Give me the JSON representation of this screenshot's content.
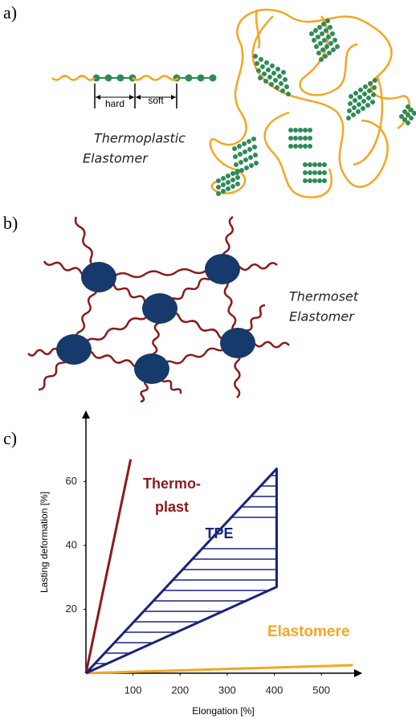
{
  "panel_a": {
    "label": "a)",
    "hard": "hard",
    "soft": "soft",
    "caption": [
      "Thermoplastic",
      "Elastomer"
    ]
  },
  "panel_b": {
    "label": "b)",
    "caption": [
      "Thermoset",
      "Elastomer"
    ]
  },
  "panel_c": {
    "label": "c)"
  },
  "chart_data": {
    "type": "line",
    "x_label": "Elongation [%]",
    "y_label": "Lasting deformation [%]",
    "xlim": [
      0,
      585
    ],
    "ylim": [
      0,
      82
    ],
    "xticks": [
      100,
      200,
      300,
      400,
      500
    ],
    "yticks": [
      20,
      40,
      60
    ],
    "series": [
      {
        "color": "#8b1a1a",
        "x": [
          0,
          95
        ],
        "values": [
          0,
          67
        ]
      },
      {
        "color": "#f5a623",
        "x": [
          0,
          567
        ],
        "values": [
          0,
          2.5
        ]
      },
      {
        "color": "#1a237e",
        "x": [
          0,
          405,
          405,
          0
        ],
        "values": [
          0,
          64,
          27,
          0
        ]
      }
    ],
    "annotations": [
      {
        "text": "Thermo-",
        "color": "#8b1a1a"
      },
      {
        "text": "plast",
        "color": "#8b1a1a"
      },
      {
        "text": "TPE",
        "color": "#1a237e"
      },
      {
        "text": "Elastomere",
        "color": "#f5a623"
      }
    ]
  }
}
